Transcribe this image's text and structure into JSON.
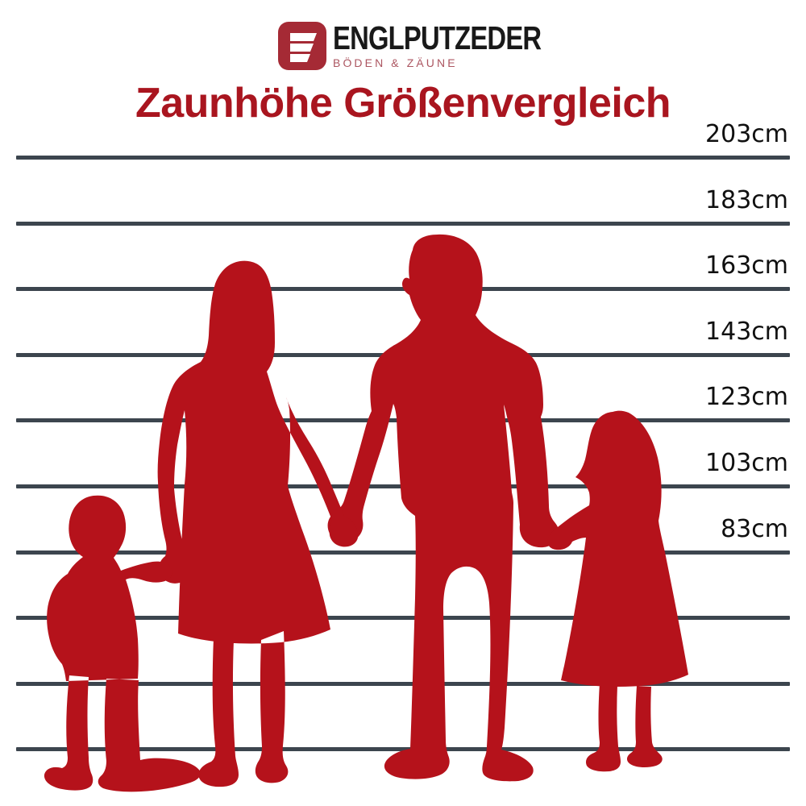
{
  "logo": {
    "brand": "ENGLPUTZEDER",
    "tagline": "BÖDEN & ZÄUNE",
    "icon": "englputzeder-e-icon"
  },
  "title": "Zaunhöhe Größenvergleich",
  "scale": {
    "unit": "cm",
    "labels": [
      "203cm",
      "183cm",
      "163cm",
      "143cm",
      "123cm",
      "103cm",
      "83cm"
    ],
    "total_lines": 10,
    "note_unlabeled_lines": 3
  },
  "figures": [
    {
      "name": "boy-silhouette",
      "description": "small boy holding mother's hand"
    },
    {
      "name": "woman-silhouette",
      "description": "mother in dress holding boy and man"
    },
    {
      "name": "man-silhouette",
      "description": "father holding woman and girl"
    },
    {
      "name": "girl-silhouette",
      "description": "girl in dress holding father's hand"
    }
  ],
  "colors": {
    "silhouette_red": "#B5121B",
    "title_red": "#A9151F",
    "logo_icon_red": "#A52A35",
    "tagline_red": "#AC5661",
    "line_gray": "#3C454E",
    "label_black": "#101010",
    "background": "#FFFFFF"
  }
}
